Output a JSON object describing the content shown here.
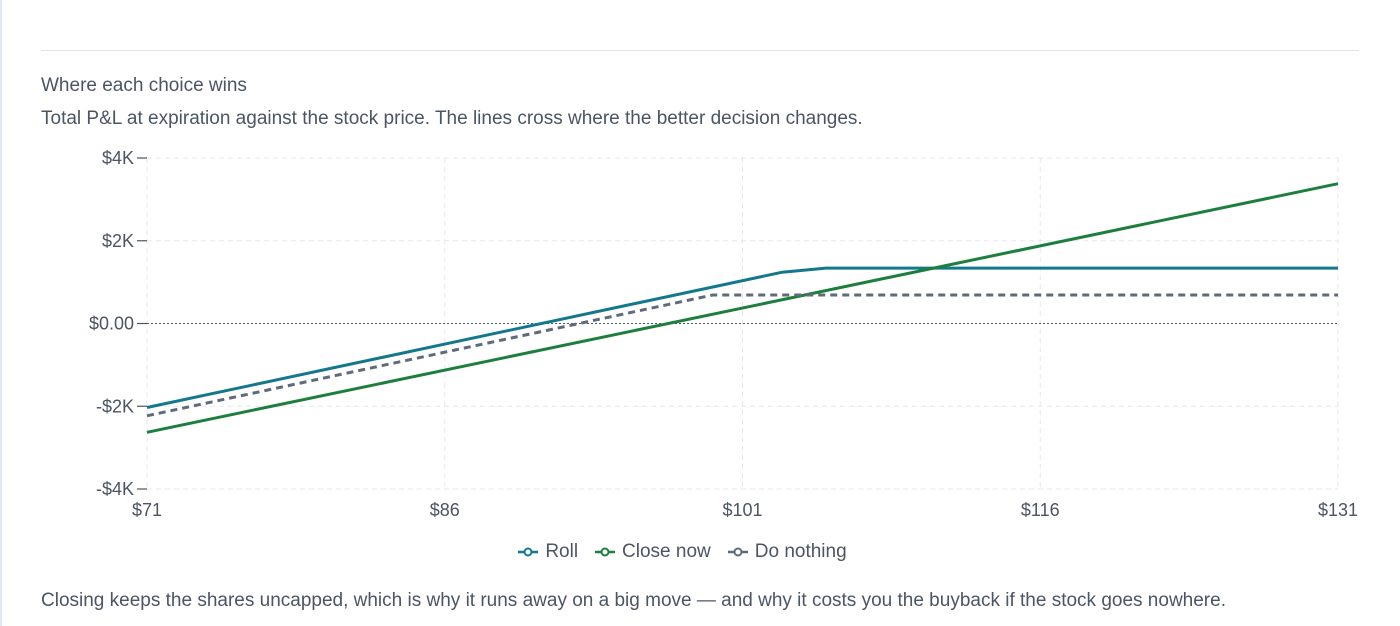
{
  "section": {
    "heading": "Where each choice wins",
    "subheading": "Total P&L at expiration against the stock price. The lines cross where the better decision changes.",
    "footnote": "Closing keeps the shares uncapped, which is why it runs away on a big move — and why it costs you the buyback if the stock goes nowhere."
  },
  "chart_data": {
    "type": "line",
    "x_tick_labels": [
      "$71",
      "$86",
      "$101",
      "$116",
      "$131"
    ],
    "x_ticks": [
      71,
      86,
      101,
      116,
      131
    ],
    "y_tick_labels": [
      "$4K",
      "$2K",
      "$0.00",
      "-$2K",
      "-$4K"
    ],
    "y_ticks": [
      4000,
      2000,
      0,
      -2000,
      -4000
    ],
    "xlim": [
      71,
      131
    ],
    "ylim": [
      -4000,
      4000
    ],
    "grid": true,
    "legend_position": "bottom-center",
    "series": [
      {
        "name": "Roll",
        "color": "#14788c",
        "dash": "solid",
        "x": [
          71,
          103,
          105.2,
          131
        ],
        "y": [
          -2030,
          1240,
          1340,
          1340
        ]
      },
      {
        "name": "Close now",
        "color": "#1d7f3d",
        "dash": "solid",
        "x": [
          71,
          131
        ],
        "y": [
          -2630,
          3380
        ]
      },
      {
        "name": "Do nothing",
        "color": "#5f6b7a",
        "dash": "dashed",
        "x": [
          71,
          99.5,
          131
        ],
        "y": [
          -2230,
          690,
          690
        ]
      }
    ],
    "zero_line": true
  }
}
